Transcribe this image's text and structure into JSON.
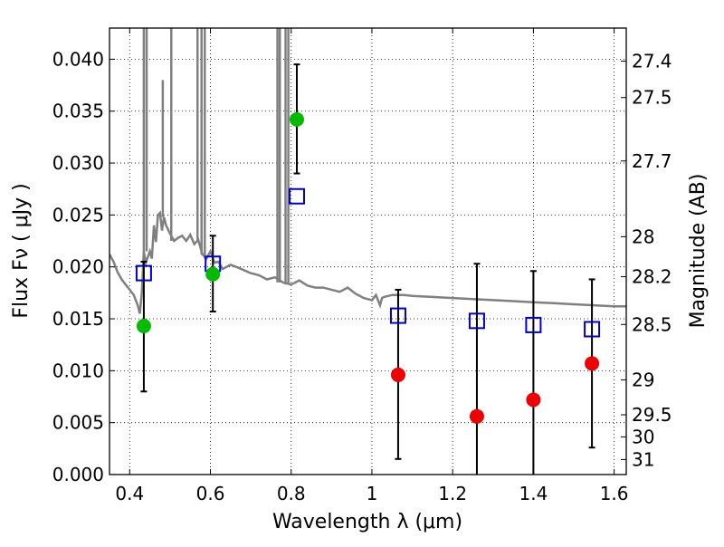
{
  "chart_data": {
    "type": "scatter",
    "title": "",
    "xlabel": "Wavelength  λ (μm)",
    "ylabel": "Flux  Fν  ( μJy )",
    "y2label": "Magnitude (AB)",
    "xlim": [
      0.35,
      1.63
    ],
    "ylim": [
      0.0,
      0.043
    ],
    "grid": true,
    "legend": "none",
    "x_ticks": [
      0.4,
      0.6,
      0.8,
      1.0,
      1.2,
      1.4,
      1.6
    ],
    "x_tick_labels": [
      "0.4",
      "0.6",
      "0.8",
      "1",
      "1.2",
      "1.4",
      "1.6"
    ],
    "y_ticks": [
      0.0,
      0.005,
      0.01,
      0.015,
      0.02,
      0.025,
      0.03,
      0.035,
      0.04
    ],
    "y_tick_labels": [
      "0.000",
      "0.005",
      "0.010",
      "0.015",
      "0.020",
      "0.025",
      "0.030",
      "0.035",
      "0.040"
    ],
    "y2_ticks": [
      {
        "label": "27.4",
        "mag": 27.4
      },
      {
        "label": "27.5",
        "mag": 27.5
      },
      {
        "label": "27.7",
        "mag": 27.7
      },
      {
        "label": "28",
        "mag": 28.0
      },
      {
        "label": "28.2",
        "mag": 28.2
      },
      {
        "label": "28.5",
        "mag": 28.5
      },
      {
        "label": "29",
        "mag": 29.0
      },
      {
        "label": "29.5",
        "mag": 29.5
      },
      {
        "label": "30",
        "mag": 30.0
      },
      {
        "label": "31",
        "mag": 31.0
      }
    ],
    "colors": {
      "detected": "#00bb00",
      "upper": "#ee0000",
      "model": "#0000cc",
      "sed": "#808080",
      "errorbar": "#000000"
    },
    "points": [
      {
        "x": 0.435,
        "y": 0.0143,
        "err_low": 0.008,
        "err_high": 0.0205,
        "kind": "detected"
      },
      {
        "x": 0.606,
        "y": 0.0193,
        "err_low": 0.0157,
        "err_high": 0.023,
        "kind": "detected"
      },
      {
        "x": 0.814,
        "y": 0.0342,
        "err_low": 0.029,
        "err_high": 0.0395,
        "kind": "detected"
      },
      {
        "x": 1.065,
        "y": 0.0096,
        "err_low": 0.0015,
        "err_high": 0.0178,
        "kind": "upper"
      },
      {
        "x": 1.26,
        "y": 0.0056,
        "err_low": 0.0,
        "err_high": 0.0203,
        "kind": "upper"
      },
      {
        "x": 1.4,
        "y": 0.0072,
        "err_low": 0.0,
        "err_high": 0.0196,
        "kind": "upper"
      },
      {
        "x": 1.545,
        "y": 0.0107,
        "err_low": 0.0026,
        "err_high": 0.0188,
        "kind": "upper"
      }
    ],
    "model_points": [
      {
        "x": 0.435,
        "y": 0.0194
      },
      {
        "x": 0.606,
        "y": 0.0203
      },
      {
        "x": 0.814,
        "y": 0.0268
      },
      {
        "x": 1.065,
        "y": 0.0153
      },
      {
        "x": 1.26,
        "y": 0.0148
      },
      {
        "x": 1.4,
        "y": 0.0144
      },
      {
        "x": 1.545,
        "y": 0.014
      }
    ],
    "sed_curve": [
      [
        0.35,
        0.0212
      ],
      [
        0.36,
        0.0205
      ],
      [
        0.37,
        0.0195
      ],
      [
        0.38,
        0.0188
      ],
      [
        0.39,
        0.0183
      ],
      [
        0.4,
        0.0178
      ],
      [
        0.41,
        0.0173
      ],
      [
        0.42,
        0.0163
      ],
      [
        0.425,
        0.0155
      ],
      [
        0.43,
        0.0175
      ],
      [
        0.435,
        0.0215
      ],
      [
        0.44,
        0.0204
      ],
      [
        0.45,
        0.0215
      ],
      [
        0.455,
        0.0208
      ],
      [
        0.46,
        0.024
      ],
      [
        0.465,
        0.0224
      ],
      [
        0.47,
        0.025
      ],
      [
        0.475,
        0.0252
      ],
      [
        0.48,
        0.0235
      ],
      [
        0.485,
        0.0248
      ],
      [
        0.49,
        0.024
      ],
      [
        0.5,
        0.0232
      ],
      [
        0.51,
        0.0225
      ],
      [
        0.52,
        0.0228
      ],
      [
        0.53,
        0.023
      ],
      [
        0.54,
        0.0225
      ],
      [
        0.55,
        0.0231
      ],
      [
        0.56,
        0.0222
      ],
      [
        0.57,
        0.0226
      ],
      [
        0.58,
        0.0212
      ],
      [
        0.59,
        0.0208
      ],
      [
        0.6,
        0.0215
      ],
      [
        0.61,
        0.0204
      ],
      [
        0.62,
        0.0205
      ],
      [
        0.63,
        0.0198
      ],
      [
        0.65,
        0.0202
      ],
      [
        0.67,
        0.0199
      ],
      [
        0.7,
        0.0194
      ],
      [
        0.72,
        0.0192
      ],
      [
        0.74,
        0.0188
      ],
      [
        0.76,
        0.019
      ],
      [
        0.78,
        0.0185
      ],
      [
        0.8,
        0.0183
      ],
      [
        0.82,
        0.0187
      ],
      [
        0.84,
        0.0182
      ],
      [
        0.86,
        0.018
      ],
      [
        0.88,
        0.018
      ],
      [
        0.9,
        0.0178
      ],
      [
        0.92,
        0.0176
      ],
      [
        0.94,
        0.018
      ],
      [
        0.96,
        0.0174
      ],
      [
        0.98,
        0.017
      ],
      [
        1.0,
        0.0168
      ],
      [
        1.01,
        0.0173
      ],
      [
        1.02,
        0.0163
      ],
      [
        1.025,
        0.017
      ],
      [
        1.03,
        0.0171
      ],
      [
        1.05,
        0.0173
      ],
      [
        1.08,
        0.0173
      ],
      [
        1.1,
        0.0172
      ],
      [
        1.15,
        0.0171
      ],
      [
        1.2,
        0.017
      ],
      [
        1.25,
        0.0169
      ],
      [
        1.3,
        0.0168
      ],
      [
        1.35,
        0.0167
      ],
      [
        1.4,
        0.0166
      ],
      [
        1.45,
        0.0165
      ],
      [
        1.5,
        0.0164
      ],
      [
        1.55,
        0.0163
      ],
      [
        1.6,
        0.0162
      ],
      [
        1.63,
        0.0162
      ]
    ],
    "sed_lines": [
      {
        "x": 0.435,
        "y_top": 0.043
      },
      {
        "x": 0.442,
        "y_top": 0.043
      },
      {
        "x": 0.482,
        "y_top": 0.038
      },
      {
        "x": 0.503,
        "y_top": 0.043
      },
      {
        "x": 0.568,
        "y_top": 0.043
      },
      {
        "x": 0.578,
        "y_top": 0.043
      },
      {
        "x": 0.586,
        "y_top": 0.043
      },
      {
        "x": 0.766,
        "y_top": 0.043
      },
      {
        "x": 0.772,
        "y_top": 0.043
      },
      {
        "x": 0.786,
        "y_top": 0.043
      },
      {
        "x": 0.793,
        "y_top": 0.043
      }
    ]
  }
}
